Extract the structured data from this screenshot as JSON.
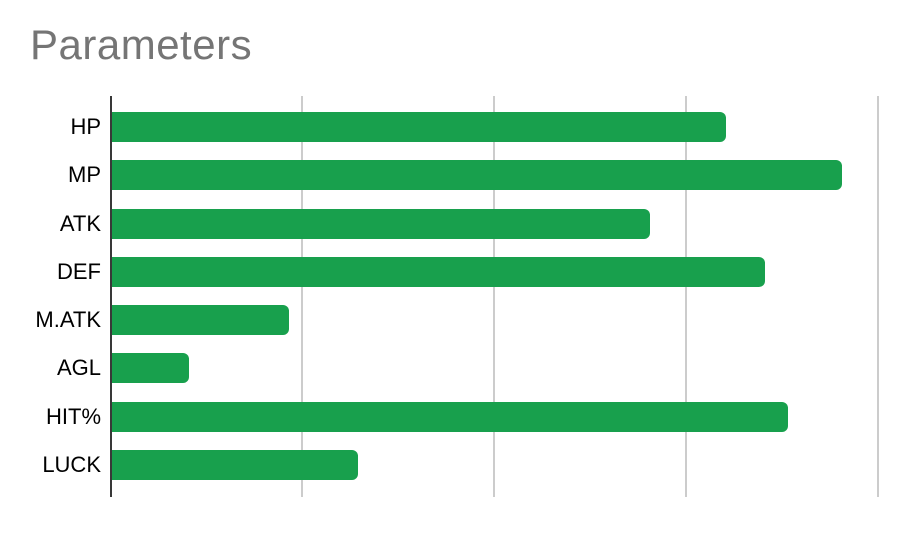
{
  "chart": {
    "title": "Parameters",
    "colors": {
      "bar": "#18a04d",
      "title_text": "#757575",
      "category_label_text": "#000000",
      "axis_line": "#383838",
      "gridline": "#cccccc",
      "background": "#ffffff"
    }
  },
  "chart_data": {
    "type": "bar",
    "orientation": "horizontal",
    "title": "Parameters",
    "categories": [
      "HP",
      "MP",
      "ATK",
      "DEF",
      "M.ATK",
      "AGL",
      "HIT%",
      "LUCK"
    ],
    "values": [
      80,
      95,
      70,
      85,
      23,
      10,
      88,
      32
    ],
    "xlabel": "",
    "ylabel": "",
    "xlim": [
      0,
      100
    ],
    "gridline_values": [
      0,
      25,
      50,
      75,
      100
    ],
    "gridline_labels_visible": false,
    "grid": true,
    "legend": "none",
    "bar_color": "#18a04d",
    "values_note": "axis ticks unlabeled in source; values estimated from gridlines at 25-unit spacing"
  }
}
